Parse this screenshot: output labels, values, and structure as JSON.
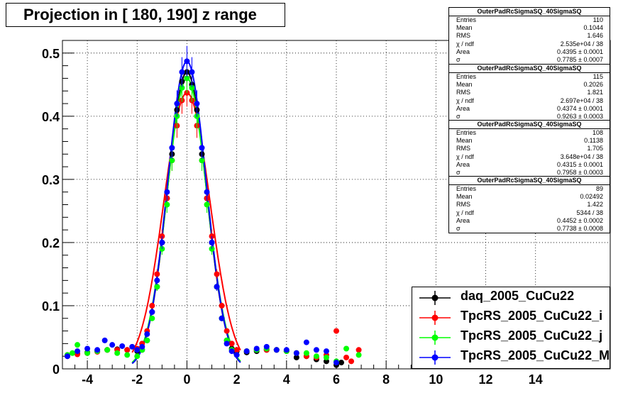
{
  "title": "Projection in [ 180, 190] z range",
  "stats": [
    {
      "name": "OuterPadRcSigmaSQ_40SigmaSQ",
      "rows": [
        [
          "Entries",
          "110"
        ],
        [
          "Mean",
          "0.1044"
        ],
        [
          "RMS",
          "1.646"
        ],
        [
          "χ  / ndf",
          "2.535e+04 / 38"
        ],
        [
          "Area",
          "0.4395 ± 0.0001"
        ],
        [
          "σ",
          "0.7785 ± 0.0007"
        ]
      ]
    },
    {
      "name": "OuterPadRcSigmaSQ_40SigmaSQ",
      "rows": [
        [
          "Entries",
          "115"
        ],
        [
          "Mean",
          "0.2026"
        ],
        [
          "RMS",
          "1.821"
        ],
        [
          "χ  / ndf",
          "2.697e+04 / 38"
        ],
        [
          "Area",
          "0.4374 ± 0.0001"
        ],
        [
          "σ",
          "0.9263 ± 0.0003"
        ]
      ]
    },
    {
      "name": "OuterPadRcSigmaSQ_40SigmaSQ",
      "rows": [
        [
          "Entries",
          "108"
        ],
        [
          "Mean",
          "0.1138"
        ],
        [
          "RMS",
          "1.705"
        ],
        [
          "χ  / ndf",
          "3.648e+04 / 38"
        ],
        [
          "Area",
          "0.4315 ± 0.0001"
        ],
        [
          "σ",
          "0.7958 ± 0.0003"
        ]
      ]
    },
    {
      "name": "OuterPadRcSigmaSQ_40SigmaSQ",
      "rows": [
        [
          "Entries",
          "89"
        ],
        [
          "Mean",
          "0.02492"
        ],
        [
          "RMS",
          "1.422"
        ],
        [
          "χ  / ndf",
          "5344 / 38"
        ],
        [
          "Area",
          "0.4452 ± 0.0002"
        ],
        [
          "σ",
          "0.7738 ± 0.0008"
        ]
      ]
    }
  ],
  "legend": [
    {
      "label": "daq_2005_CuCu22",
      "color": "#000000"
    },
    {
      "label": "TpcRS_2005_CuCu22_i",
      "color": "#ff0000"
    },
    {
      "label": "TpcRS_2005_CuCu22_j",
      "color": "#00ff00"
    },
    {
      "label": "TpcRS_2005_CuCu22_M",
      "color": "#0000ff"
    }
  ],
  "chart_data": {
    "type": "scatter",
    "title": "Projection in [ 180, 190] z range",
    "xlabel": "",
    "ylabel": "",
    "xlim": [
      -5,
      17
    ],
    "ylim": [
      0,
      0.52
    ],
    "x_ticks": [
      -4,
      -2,
      0,
      2,
      4,
      6,
      8,
      10,
      12,
      14
    ],
    "y_ticks": [
      0,
      0.1,
      0.2,
      0.3,
      0.4,
      0.5
    ],
    "grid": true,
    "legend_position": "bottom-right",
    "series": [
      {
        "name": "daq_2005_CuCu22",
        "color": "#000000",
        "peak": 0.47,
        "sigma": 0.7785,
        "mean": 0.0,
        "points": [
          [
            -4.8,
            0.022
          ],
          [
            -4.4,
            0.024
          ],
          [
            -4.0,
            0.026
          ],
          [
            -3.6,
            0.028
          ],
          [
            -3.2,
            0.03
          ],
          [
            -2.8,
            0.031
          ],
          [
            -2.4,
            0.03
          ],
          [
            -2.0,
            0.028
          ],
          [
            -1.8,
            0.03
          ],
          [
            -1.6,
            0.045
          ],
          [
            -1.4,
            0.09
          ],
          [
            -1.2,
            0.13
          ],
          [
            -1.0,
            0.2
          ],
          [
            -0.8,
            0.27
          ],
          [
            -0.6,
            0.34
          ],
          [
            -0.4,
            0.41
          ],
          [
            -0.2,
            0.455
          ],
          [
            0.0,
            0.47
          ],
          [
            0.2,
            0.45
          ],
          [
            0.4,
            0.41
          ],
          [
            0.6,
            0.34
          ],
          [
            0.8,
            0.27
          ],
          [
            1.0,
            0.2
          ],
          [
            1.2,
            0.13
          ],
          [
            1.4,
            0.08
          ],
          [
            1.6,
            0.045
          ],
          [
            1.8,
            0.032
          ],
          [
            2.0,
            0.028
          ],
          [
            2.4,
            0.026
          ],
          [
            2.8,
            0.028
          ],
          [
            3.2,
            0.03
          ],
          [
            3.6,
            0.03
          ],
          [
            4.0,
            0.028
          ],
          [
            4.4,
            0.018
          ],
          [
            4.8,
            0.02
          ],
          [
            5.2,
            0.015
          ],
          [
            5.6,
            0.012
          ],
          [
            6.0,
            0.006
          ],
          [
            6.2,
            0.01
          ]
        ]
      },
      {
        "name": "TpcRS_2005_CuCu22_i",
        "color": "#ff0000",
        "peak": 0.437,
        "sigma": 0.9263,
        "mean": 0.0,
        "points": [
          [
            -4.8,
            0.02
          ],
          [
            -4.4,
            0.023
          ],
          [
            -4.0,
            0.025
          ],
          [
            -3.6,
            0.027
          ],
          [
            -3.2,
            0.03
          ],
          [
            -2.8,
            0.03
          ],
          [
            -2.4,
            0.03
          ],
          [
            -2.0,
            0.032
          ],
          [
            -1.8,
            0.04
          ],
          [
            -1.6,
            0.06
          ],
          [
            -1.4,
            0.1
          ],
          [
            -1.2,
            0.15
          ],
          [
            -1.0,
            0.21
          ],
          [
            -0.8,
            0.27
          ],
          [
            -0.6,
            0.33
          ],
          [
            -0.4,
            0.385
          ],
          [
            -0.2,
            0.425
          ],
          [
            0.0,
            0.437
          ],
          [
            0.2,
            0.425
          ],
          [
            0.4,
            0.385
          ],
          [
            0.6,
            0.33
          ],
          [
            0.8,
            0.27
          ],
          [
            1.0,
            0.21
          ],
          [
            1.2,
            0.15
          ],
          [
            1.4,
            0.1
          ],
          [
            1.6,
            0.06
          ],
          [
            1.8,
            0.04
          ],
          [
            2.0,
            0.03
          ],
          [
            2.4,
            0.028
          ],
          [
            2.8,
            0.03
          ],
          [
            3.2,
            0.03
          ],
          [
            3.6,
            0.03
          ],
          [
            4.0,
            0.028
          ],
          [
            4.4,
            0.025
          ],
          [
            4.8,
            0.02
          ],
          [
            5.2,
            0.018
          ],
          [
            5.6,
            0.022
          ],
          [
            6.0,
            0.06
          ],
          [
            6.4,
            0.018
          ],
          [
            6.6,
            0.012
          ],
          [
            6.9,
            0.03
          ]
        ]
      },
      {
        "name": "TpcRS_2005_CuCu22_j",
        "color": "#00ff00",
        "peak": 0.46,
        "sigma": 0.7958,
        "mean": 0.0,
        "points": [
          [
            -4.8,
            0.022
          ],
          [
            -4.6,
            0.025
          ],
          [
            -4.4,
            0.038
          ],
          [
            -4.0,
            0.025
          ],
          [
            -3.6,
            0.028
          ],
          [
            -3.2,
            0.03
          ],
          [
            -2.8,
            0.025
          ],
          [
            -2.4,
            0.022
          ],
          [
            -2.0,
            0.02
          ],
          [
            -1.8,
            0.03
          ],
          [
            -1.6,
            0.045
          ],
          [
            -1.4,
            0.08
          ],
          [
            -1.2,
            0.13
          ],
          [
            -1.0,
            0.19
          ],
          [
            -0.8,
            0.26
          ],
          [
            -0.6,
            0.33
          ],
          [
            -0.4,
            0.4
          ],
          [
            -0.2,
            0.445
          ],
          [
            0.0,
            0.46
          ],
          [
            0.2,
            0.445
          ],
          [
            0.4,
            0.4
          ],
          [
            0.6,
            0.33
          ],
          [
            0.8,
            0.26
          ],
          [
            1.0,
            0.19
          ],
          [
            1.2,
            0.13
          ],
          [
            1.4,
            0.08
          ],
          [
            1.6,
            0.045
          ],
          [
            1.8,
            0.03
          ],
          [
            2.0,
            0.022
          ],
          [
            2.4,
            0.028
          ],
          [
            2.8,
            0.03
          ],
          [
            3.2,
            0.032
          ],
          [
            3.6,
            0.03
          ],
          [
            4.0,
            0.028
          ],
          [
            4.4,
            0.025
          ],
          [
            4.8,
            0.025
          ],
          [
            5.2,
            0.02
          ],
          [
            5.6,
            0.018
          ],
          [
            6.0,
            0.012
          ],
          [
            6.4,
            0.032
          ],
          [
            6.9,
            0.022
          ]
        ]
      },
      {
        "name": "TpcRS_2005_CuCu22_M",
        "color": "#0000ff",
        "peak": 0.487,
        "sigma": 0.7738,
        "mean": 0.0,
        "points": [
          [
            -4.8,
            0.02
          ],
          [
            -4.4,
            0.028
          ],
          [
            -4.0,
            0.032
          ],
          [
            -3.6,
            0.03
          ],
          [
            -3.3,
            0.045
          ],
          [
            -3.0,
            0.038
          ],
          [
            -2.6,
            0.036
          ],
          [
            -2.2,
            0.035
          ],
          [
            -2.0,
            0.03
          ],
          [
            -1.8,
            0.035
          ],
          [
            -1.6,
            0.055
          ],
          [
            -1.4,
            0.09
          ],
          [
            -1.2,
            0.14
          ],
          [
            -1.0,
            0.2
          ],
          [
            -0.8,
            0.28
          ],
          [
            -0.6,
            0.35
          ],
          [
            -0.4,
            0.42
          ],
          [
            -0.2,
            0.47
          ],
          [
            0.0,
            0.487
          ],
          [
            0.2,
            0.47
          ],
          [
            0.4,
            0.42
          ],
          [
            0.6,
            0.35
          ],
          [
            0.8,
            0.28
          ],
          [
            1.0,
            0.2
          ],
          [
            1.2,
            0.13
          ],
          [
            1.4,
            0.08
          ],
          [
            1.6,
            0.04
          ],
          [
            1.8,
            0.028
          ],
          [
            2.0,
            0.022
          ],
          [
            2.4,
            0.028
          ],
          [
            2.8,
            0.032
          ],
          [
            3.2,
            0.035
          ],
          [
            3.6,
            0.03
          ],
          [
            4.0,
            0.03
          ],
          [
            4.4,
            0.025
          ],
          [
            4.8,
            0.042
          ],
          [
            5.2,
            0.03
          ],
          [
            5.6,
            0.028
          ],
          [
            6.0,
            0.01
          ]
        ]
      }
    ]
  }
}
